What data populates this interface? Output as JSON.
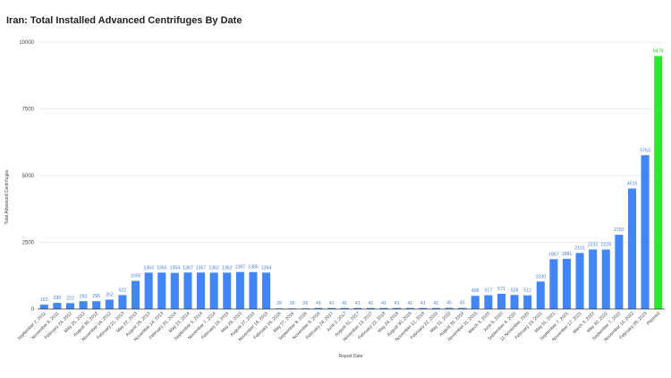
{
  "chart_data": {
    "type": "bar",
    "title": "Iran: Total Installed Advanced Centrifuges By Date",
    "xlabel": "Report Date",
    "ylabel": "Total Advanced Centrifuges",
    "ylim": [
      0,
      10000
    ],
    "yticks": [
      0,
      2500,
      5000,
      7500,
      10000
    ],
    "grid": "horizontal",
    "legend": "none",
    "colors": {
      "bar": "#4285f4",
      "highlight": "#2ee82e",
      "grid": "#dddddd"
    },
    "categories": [
      "September 2, 2011",
      "November 8, 2011",
      "February 24, 2012",
      "May 25, 2012",
      "August 30, 2012",
      "November 16, 2012",
      "February 21, 2013",
      "May 22, 2013",
      "August 28, 2013",
      "November 14, 2013",
      "February 20, 2014",
      "May 23, 2014",
      "September 5, 2014",
      "November 7, 2014",
      "February 19, 2015",
      "May 29, 2015",
      "August 27, 2015",
      "November 18, 2015",
      "February 26, 2016",
      "May 27, 2016",
      "September 8, 2016",
      "November 9, 2016",
      "February 24, 2017",
      "June 2, 2017",
      "August 31, 2017",
      "November 13, 2017",
      "February 22, 2018",
      "May 24, 2018",
      "August 30, 2018",
      "November 12, 2018",
      "February 22, 2019",
      "May 31, 2019",
      "August 30, 2019",
      "November 11, 2019",
      "March 3, 2020",
      "June 5, 2020",
      "September 4, 2020",
      "11 November, 2020",
      "February 23, 2021",
      "May 31, 2021",
      "September 7, 2021",
      "November 17, 2021",
      "March 3, 2022",
      "May 30, 2022",
      "September 7, 2022",
      "November 10, 2022",
      "February 28, 2023",
      "Planned"
    ],
    "values": [
      163,
      230,
      222,
      293,
      295,
      352,
      522,
      1055,
      1363,
      1365,
      1354,
      1367,
      1367,
      1362,
      1362,
      1387,
      1385,
      1364,
      26,
      26,
      26,
      41,
      41,
      41,
      41,
      41,
      41,
      41,
      41,
      41,
      41,
      45,
      45,
      495,
      517,
      571,
      528,
      512,
      1030,
      1867,
      1881,
      2101,
      2232,
      2228,
      2782,
      4515,
      5763,
      9479
    ],
    "data_labels": [
      "163",
      "230",
      "222",
      "293",
      "295",
      "352",
      "522",
      "1055",
      "1363",
      "1365",
      "1354",
      "1367",
      "1367",
      "1362",
      "1362",
      "1387",
      "1385",
      "1364",
      "26",
      "26",
      "26",
      "41",
      "41",
      "41",
      "41",
      "41",
      "41",
      "41",
      "41",
      "41",
      "41",
      "45",
      "45",
      "495",
      "517",
      "571",
      "528",
      "512",
      "1030",
      "1867",
      "1881",
      "2101",
      "2232",
      "2228",
      "2782",
      "4515",
      "5763",
      "9479"
    ],
    "highlighted_category": "Planned"
  }
}
